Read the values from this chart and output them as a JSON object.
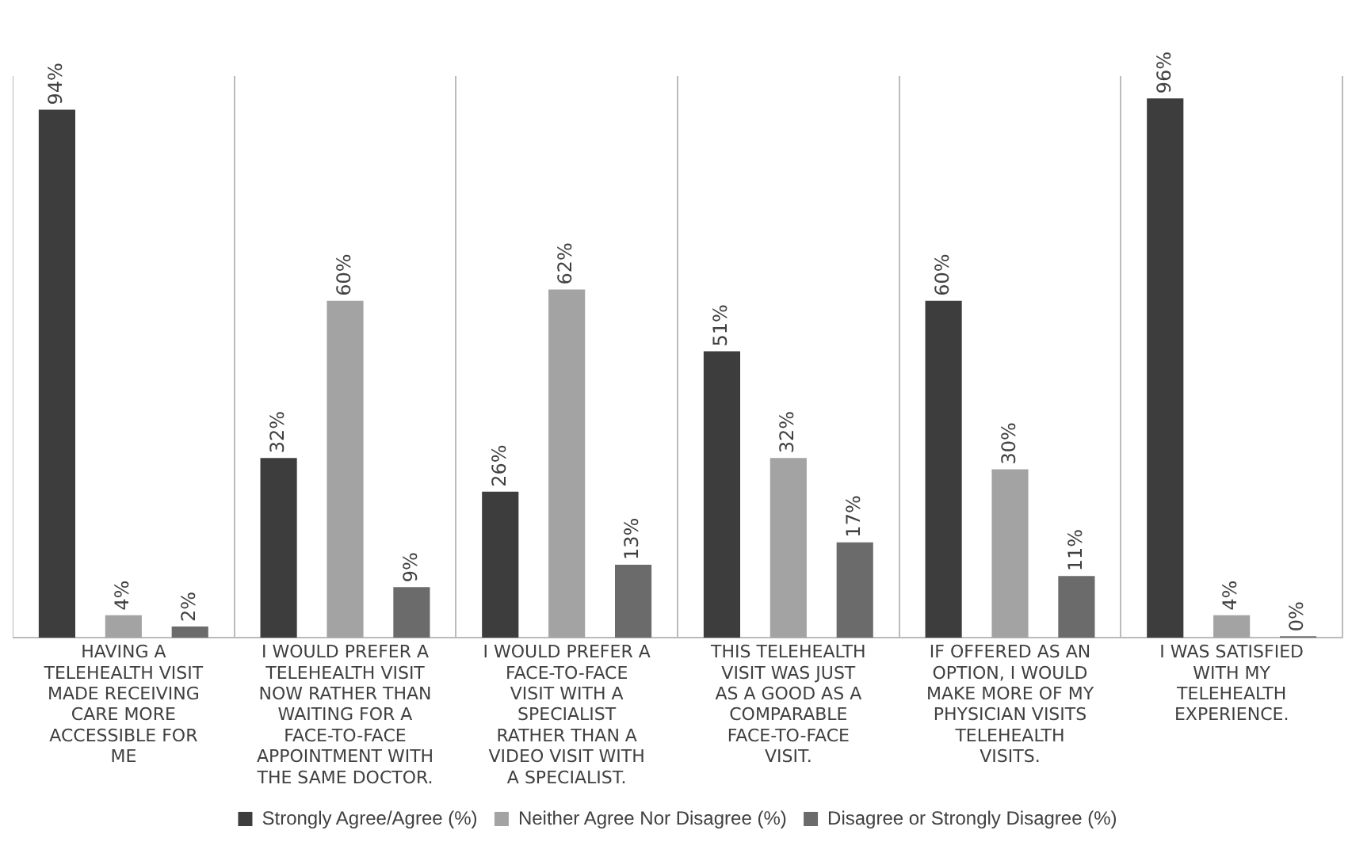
{
  "chart_data": {
    "type": "bar",
    "categories": [
      "HAVING A TELEHEALTH VISIT MADE RECEIVING CARE MORE ACCESSIBLE FOR ME",
      "I WOULD PREFER A TELEHEALTH VISIT NOW RATHER THAN WAITING FOR A FACE-TO-FACE APPOINTMENT WITH THE SAME DOCTOR.",
      "I WOULD PREFER A FACE-TO-FACE VISIT WITH A SPECIALIST RATHER THAN A VIDEO VISIT WITH A SPECIALIST.",
      "THIS TELEHEALTH VISIT WAS JUST AS A GOOD AS A COMPARABLE FACE-TO-FACE VISIT.",
      "IF OFFERED AS AN OPTION, I WOULD MAKE MORE OF MY PHYSICIAN VISITS TELEHEALTH VISITS.",
      "I WAS SATISFIED WITH MY TELEHEALTH EXPERIENCE."
    ],
    "series": [
      {
        "name": "Strongly Agree/Agree (%)",
        "color": "#3d3d3d",
        "values": [
          94,
          32,
          26,
          51,
          60,
          96
        ],
        "value_labels": [
          "94%",
          "32%",
          "26%",
          "51%",
          "60%",
          "96%"
        ]
      },
      {
        "name": "Neither Agree Nor Disagree (%)",
        "color": "#a3a3a3",
        "values": [
          4,
          60,
          62,
          32,
          30,
          4
        ],
        "value_labels": [
          "4%",
          "60%",
          "62%",
          "32%",
          "30%",
          "4%"
        ]
      },
      {
        "name": "Disagree or Strongly Disagree (%)",
        "color": "#6b6b6b",
        "values": [
          2,
          9,
          13,
          17,
          11,
          0
        ],
        "value_labels": [
          "2%",
          "9%",
          "13%",
          "17%",
          "11%",
          "0%"
        ]
      }
    ],
    "grid": "x",
    "legend": "bottom"
  }
}
